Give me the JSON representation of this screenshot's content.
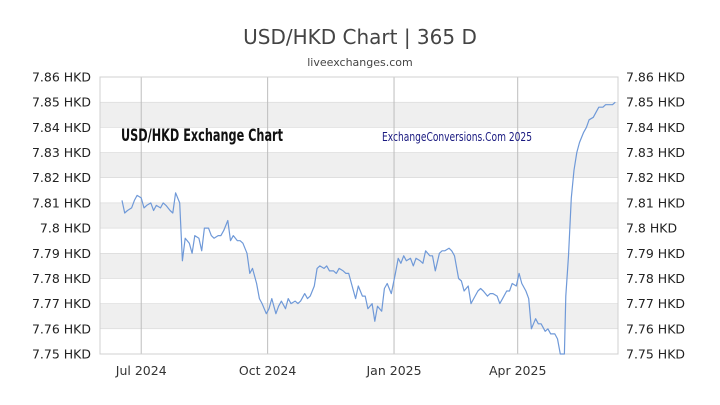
{
  "title": "USD/HKD Chart | 365 D",
  "subtitle": "liveexchanges.com",
  "inner_label": "USD/HKD Exchange Chart",
  "watermark": "ExchangeConversions.Com 2025",
  "colors": {
    "line": "#6f99d8",
    "band": "#efefef",
    "grid": "#cfcfcf",
    "vgrid": "#bdbdbd"
  },
  "chart_data": {
    "type": "line",
    "title": "USD/HKD Chart | 365 D",
    "ylim": [
      7.75,
      7.86
    ],
    "y_ticks": [
      "7.75 HKD",
      "7.76 HKD",
      "7.77 HKD",
      "7.78 HKD",
      "7.79 HKD",
      "7.8 HKD",
      "7.81 HKD",
      "7.82 HKD",
      "7.83 HKD",
      "7.84 HKD",
      "7.85 HKD",
      "7.86 HKD"
    ],
    "y_tick_values": [
      7.75,
      7.76,
      7.77,
      7.78,
      7.79,
      7.8,
      7.81,
      7.82,
      7.83,
      7.84,
      7.85,
      7.86
    ],
    "x_range": [
      "2024-06-01",
      "2025-06-13"
    ],
    "x_ticks": [
      {
        "label": "Jul 2024",
        "date": "2024-07-01"
      },
      {
        "label": "Oct 2024",
        "date": "2024-10-01"
      },
      {
        "label": "Jan 2025",
        "date": "2025-01-01"
      },
      {
        "label": "Apr 2025",
        "date": "2025-04-01"
      }
    ],
    "grid": true,
    "series": [
      {
        "points": [
          [
            "2024-06-17",
            7.811
          ],
          [
            "2024-06-19",
            7.806
          ],
          [
            "2024-06-21",
            7.807
          ],
          [
            "2024-06-24",
            7.808
          ],
          [
            "2024-06-26",
            7.811
          ],
          [
            "2024-06-28",
            7.813
          ],
          [
            "2024-07-01",
            7.812
          ],
          [
            "2024-07-03",
            7.808
          ],
          [
            "2024-07-05",
            7.809
          ],
          [
            "2024-07-08",
            7.81
          ],
          [
            "2024-07-10",
            7.807
          ],
          [
            "2024-07-12",
            7.809
          ],
          [
            "2024-07-15",
            7.808
          ],
          [
            "2024-07-17",
            7.81
          ],
          [
            "2024-07-19",
            7.809
          ],
          [
            "2024-07-22",
            7.807
          ],
          [
            "2024-07-24",
            7.806
          ],
          [
            "2024-07-26",
            7.814
          ],
          [
            "2024-07-29",
            7.81
          ],
          [
            "2024-07-31",
            7.787
          ],
          [
            "2024-08-02",
            7.796
          ],
          [
            "2024-08-05",
            7.794
          ],
          [
            "2024-08-07",
            7.79
          ],
          [
            "2024-08-09",
            7.797
          ],
          [
            "2024-08-12",
            7.796
          ],
          [
            "2024-08-14",
            7.791
          ],
          [
            "2024-08-16",
            7.8
          ],
          [
            "2024-08-19",
            7.8
          ],
          [
            "2024-08-21",
            7.797
          ],
          [
            "2024-08-23",
            7.796
          ],
          [
            "2024-08-26",
            7.797
          ],
          [
            "2024-08-28",
            7.797
          ],
          [
            "2024-08-30",
            7.799
          ],
          [
            "2024-09-02",
            7.803
          ],
          [
            "2024-09-04",
            7.795
          ],
          [
            "2024-09-06",
            7.797
          ],
          [
            "2024-09-09",
            7.795
          ],
          [
            "2024-09-11",
            7.795
          ],
          [
            "2024-09-13",
            7.794
          ],
          [
            "2024-09-16",
            7.79
          ],
          [
            "2024-09-18",
            7.782
          ],
          [
            "2024-09-20",
            7.784
          ],
          [
            "2024-09-23",
            7.778
          ],
          [
            "2024-09-25",
            7.772
          ],
          [
            "2024-09-27",
            7.77
          ],
          [
            "2024-09-30",
            7.766
          ],
          [
            "2024-10-02",
            7.768
          ],
          [
            "2024-10-04",
            7.772
          ],
          [
            "2024-10-07",
            7.766
          ],
          [
            "2024-10-09",
            7.769
          ],
          [
            "2024-10-11",
            7.771
          ],
          [
            "2024-10-14",
            7.768
          ],
          [
            "2024-10-16",
            7.772
          ],
          [
            "2024-10-18",
            7.77
          ],
          [
            "2024-10-21",
            7.771
          ],
          [
            "2024-10-23",
            7.77
          ],
          [
            "2024-10-25",
            7.771
          ],
          [
            "2024-10-28",
            7.774
          ],
          [
            "2024-10-30",
            7.772
          ],
          [
            "2024-11-01",
            7.773
          ],
          [
            "2024-11-04",
            7.777
          ],
          [
            "2024-11-06",
            7.784
          ],
          [
            "2024-11-08",
            7.785
          ],
          [
            "2024-11-11",
            7.784
          ],
          [
            "2024-11-13",
            7.785
          ],
          [
            "2024-11-15",
            7.783
          ],
          [
            "2024-11-18",
            7.783
          ],
          [
            "2024-11-20",
            7.782
          ],
          [
            "2024-11-22",
            7.784
          ],
          [
            "2024-11-25",
            7.783
          ],
          [
            "2024-11-27",
            7.782
          ],
          [
            "2024-11-29",
            7.782
          ],
          [
            "2024-12-02",
            7.776
          ],
          [
            "2024-12-04",
            7.772
          ],
          [
            "2024-12-06",
            7.777
          ],
          [
            "2024-12-09",
            7.773
          ],
          [
            "2024-12-11",
            7.773
          ],
          [
            "2024-12-13",
            7.768
          ],
          [
            "2024-12-16",
            7.77
          ],
          [
            "2024-12-18",
            7.763
          ],
          [
            "2024-12-20",
            7.769
          ],
          [
            "2024-12-23",
            7.767
          ],
          [
            "2024-12-25",
            7.776
          ],
          [
            "2024-12-27",
            7.778
          ],
          [
            "2024-12-30",
            7.774
          ],
          [
            "2025-01-02",
            7.782
          ],
          [
            "2025-01-04",
            7.788
          ],
          [
            "2025-01-06",
            7.786
          ],
          [
            "2025-01-08",
            7.789
          ],
          [
            "2025-01-10",
            7.787
          ],
          [
            "2025-01-13",
            7.788
          ],
          [
            "2025-01-15",
            7.785
          ],
          [
            "2025-01-17",
            7.788
          ],
          [
            "2025-01-20",
            7.787
          ],
          [
            "2025-01-22",
            7.786
          ],
          [
            "2025-01-24",
            7.791
          ],
          [
            "2025-01-27",
            7.789
          ],
          [
            "2025-01-29",
            7.789
          ],
          [
            "2025-01-31",
            7.783
          ],
          [
            "2025-02-03",
            7.79
          ],
          [
            "2025-02-05",
            7.791
          ],
          [
            "2025-02-07",
            7.791
          ],
          [
            "2025-02-10",
            7.792
          ],
          [
            "2025-02-12",
            7.791
          ],
          [
            "2025-02-14",
            7.789
          ],
          [
            "2025-02-17",
            7.78
          ],
          [
            "2025-02-19",
            7.779
          ],
          [
            "2025-02-21",
            7.775
          ],
          [
            "2025-02-24",
            7.777
          ],
          [
            "2025-02-26",
            7.77
          ],
          [
            "2025-02-28",
            7.772
          ],
          [
            "2025-03-03",
            7.775
          ],
          [
            "2025-03-05",
            7.776
          ],
          [
            "2025-03-07",
            7.775
          ],
          [
            "2025-03-10",
            7.773
          ],
          [
            "2025-03-12",
            7.774
          ],
          [
            "2025-03-14",
            7.774
          ],
          [
            "2025-03-17",
            7.773
          ],
          [
            "2025-03-19",
            7.77
          ],
          [
            "2025-03-21",
            7.772
          ],
          [
            "2025-03-24",
            7.775
          ],
          [
            "2025-03-26",
            7.775
          ],
          [
            "2025-03-28",
            7.778
          ],
          [
            "2025-03-31",
            7.777
          ],
          [
            "2025-04-02",
            7.782
          ],
          [
            "2025-04-04",
            7.778
          ],
          [
            "2025-04-07",
            7.775
          ],
          [
            "2025-04-09",
            7.772
          ],
          [
            "2025-04-11",
            7.76
          ],
          [
            "2025-04-14",
            7.764
          ],
          [
            "2025-04-16",
            7.762
          ],
          [
            "2025-04-18",
            7.762
          ],
          [
            "2025-04-21",
            7.759
          ],
          [
            "2025-04-23",
            7.76
          ],
          [
            "2025-04-25",
            7.758
          ],
          [
            "2025-04-28",
            7.758
          ],
          [
            "2025-04-30",
            7.756
          ],
          [
            "2025-05-02",
            7.75
          ],
          [
            "2025-05-05",
            7.75
          ],
          [
            "2025-05-06",
            7.773
          ],
          [
            "2025-05-08",
            7.789
          ],
          [
            "2025-05-10",
            7.812
          ],
          [
            "2025-05-12",
            7.823
          ],
          [
            "2025-05-14",
            7.83
          ],
          [
            "2025-05-16",
            7.834
          ],
          [
            "2025-05-19",
            7.838
          ],
          [
            "2025-05-21",
            7.84
          ],
          [
            "2025-05-23",
            7.843
          ],
          [
            "2025-05-26",
            7.844
          ],
          [
            "2025-05-28",
            7.846
          ],
          [
            "2025-05-30",
            7.848
          ],
          [
            "2025-06-02",
            7.848
          ],
          [
            "2025-06-04",
            7.849
          ],
          [
            "2025-06-06",
            7.849
          ],
          [
            "2025-06-09",
            7.849
          ],
          [
            "2025-06-11",
            7.85
          ]
        ]
      }
    ]
  }
}
